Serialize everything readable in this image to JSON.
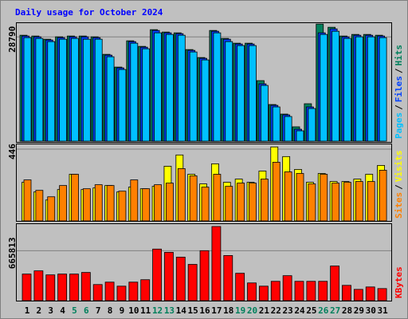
{
  "legend_separator": "/",
  "chart_data": [
    {
      "type": "bar",
      "title": "Daily usage for October 2024",
      "title_color": "#0000ff",
      "ylim": [
        0,
        32600
      ],
      "yticks": [
        28790
      ],
      "grid": true,
      "series": [
        {
          "name": "Hits",
          "color": "#00805c",
          "values": [
            29260,
            29040,
            28160,
            28820,
            29040,
            29040,
            28820,
            23980,
            20460,
            27720,
            26180,
            30800,
            30140,
            29920,
            25300,
            23100,
            30580,
            28380,
            27060,
            27060,
            16720,
            10120,
            7480,
            3960,
            10340,
            32340,
            31460,
            29040,
            29480,
            29480,
            29260
          ]
        },
        {
          "name": "Files",
          "color": "#0040ff",
          "values": [
            29040,
            28820,
            27940,
            28600,
            28820,
            28820,
            28600,
            23760,
            20240,
            27500,
            25960,
            30580,
            29920,
            29700,
            25080,
            22880,
            30360,
            28160,
            26840,
            26840,
            15840,
            9900,
            7260,
            3300,
            9460,
            29920,
            31020,
            28820,
            29260,
            29260,
            29040
          ]
        },
        {
          "name": "Pages",
          "color": "#00c0ff",
          "values": [
            28600,
            28380,
            27500,
            28160,
            28380,
            28160,
            28160,
            23320,
            19800,
            27060,
            25520,
            29920,
            29480,
            29260,
            24640,
            22440,
            29920,
            27500,
            26400,
            26400,
            15400,
            9460,
            6820,
            2860,
            9020,
            29480,
            30360,
            28380,
            28820,
            28820,
            28600
          ]
        }
      ]
    },
    {
      "type": "bar",
      "ylim": [
        0,
        476
      ],
      "yticks": [
        446
      ],
      "grid": true,
      "series": [
        {
          "name": "Visits",
          "color": "#ffff00",
          "values": [
            240,
            180,
            130,
            195,
            290,
            195,
            205,
            220,
            180,
            210,
            200,
            215,
            340,
            410,
            290,
            230,
            355,
            240,
            260,
            240,
            310,
            460,
            400,
            320,
            240,
            295,
            245,
            245,
            260,
            290,
            345
          ]
        },
        {
          "name": "Sites",
          "color": "#ff8000",
          "values": [
            255,
            190,
            150,
            220,
            290,
            200,
            225,
            220,
            185,
            255,
            200,
            225,
            235,
            325,
            280,
            210,
            290,
            215,
            235,
            235,
            260,
            365,
            305,
            295,
            230,
            290,
            235,
            240,
            245,
            245,
            315
          ]
        }
      ]
    },
    {
      "type": "bar",
      "ylim": [
        0,
        1020000
      ],
      "yticks": [
        665813
      ],
      "grid": true,
      "categories": [
        "1",
        "2",
        "3",
        "4",
        "5",
        "6",
        "7",
        "8",
        "9",
        "10",
        "11",
        "12",
        "13",
        "14",
        "15",
        "16",
        "17",
        "18",
        "19",
        "20",
        "21",
        "22",
        "23",
        "24",
        "25",
        "26",
        "27",
        "28",
        "29",
        "30",
        "31"
      ],
      "category_colors": [
        "#000000",
        "#000000",
        "#000000",
        "#000000",
        "#00805c",
        "#00805c",
        "#000000",
        "#000000",
        "#000000",
        "#000000",
        "#000000",
        "#00805c",
        "#00805c",
        "#000000",
        "#000000",
        "#000000",
        "#000000",
        "#000000",
        "#00805c",
        "#00805c",
        "#000000",
        "#000000",
        "#000000",
        "#000000",
        "#000000",
        "#00805c",
        "#00805c",
        "#000000",
        "#000000",
        "#000000",
        "#000000"
      ],
      "series": [
        {
          "name": "KBytes",
          "color": "#ff0000",
          "values": [
            354390,
            397340,
            343650,
            354390,
            354390,
            375870,
            214780,
            247000,
            193300,
            247000,
            279210,
            687300,
            644340,
            579910,
            483260,
            665820,
            988000,
            601380,
            365130,
            236260,
            193300,
            257740,
            332910,
            257740,
            257740,
            257740,
            461780,
            204040,
            150350,
            182560,
            161090
          ]
        }
      ]
    }
  ]
}
